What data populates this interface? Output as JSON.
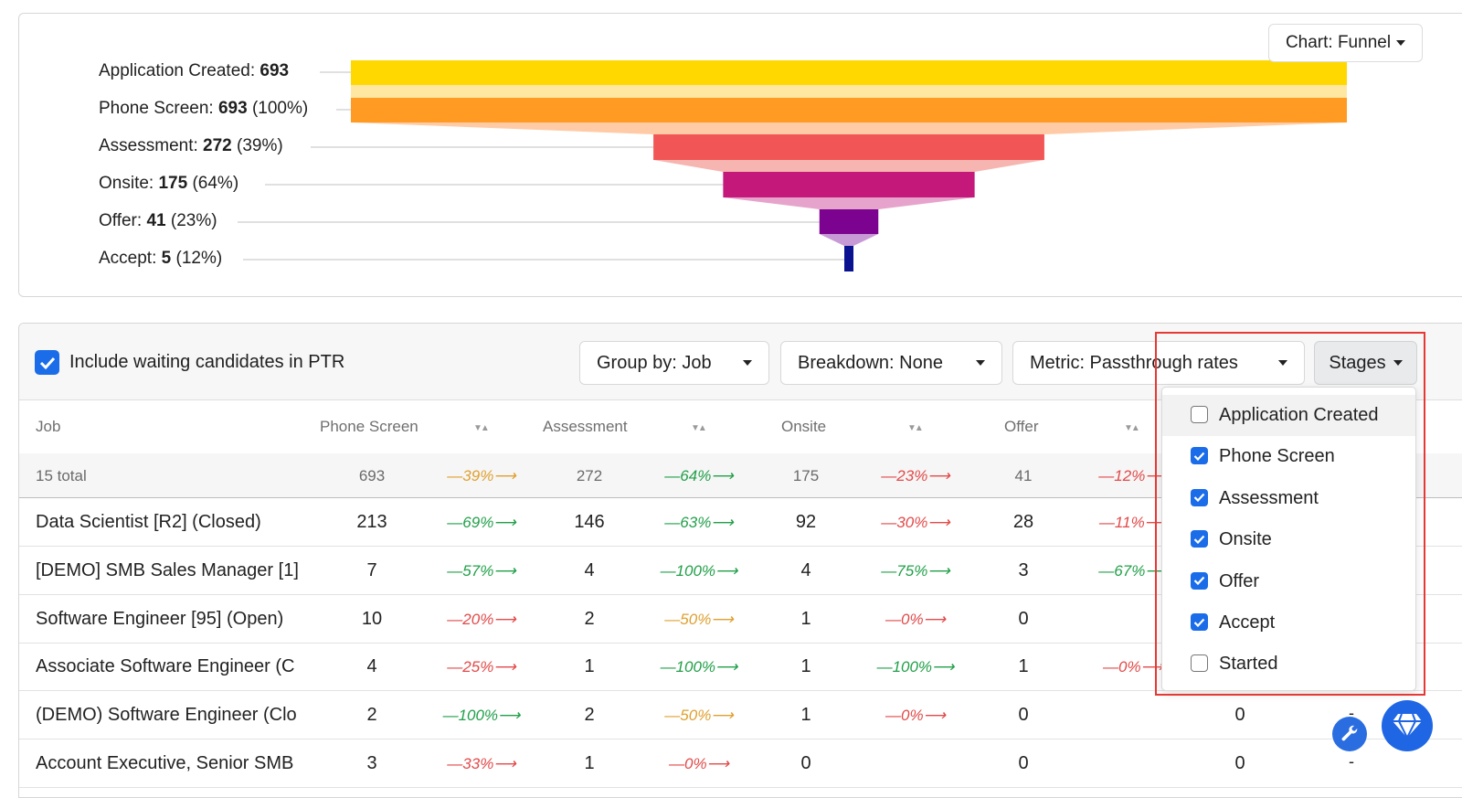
{
  "funnel": {
    "chart_button_label": "Chart: Funnel",
    "stages": [
      {
        "name": "Application Created:",
        "count": "693",
        "pct": "",
        "value": 693,
        "color": "#FFD800",
        "connector": "#FFE7A1"
      },
      {
        "name": "Phone Screen:",
        "count": "693",
        "pct": "(100%)",
        "value": 693,
        "color": "#FF9A22",
        "connector": "#FFCBA6"
      },
      {
        "name": "Assessment:",
        "count": "272",
        "pct": "(39%)",
        "value": 272,
        "color": "#F25555",
        "connector": "#F6B5B0"
      },
      {
        "name": "Onsite:",
        "count": "175",
        "pct": "(64%)",
        "value": 175,
        "color": "#C4197A",
        "connector": "#E6A3CB"
      },
      {
        "name": "Offer:",
        "count": "41",
        "pct": "(23%)",
        "value": 41,
        "color": "#7B038F",
        "connector": "#C79AD6"
      },
      {
        "name": "Accept:",
        "count": "5",
        "pct": "(12%)",
        "value": 5,
        "color": "#0A1290",
        "connector": ""
      }
    ]
  },
  "toolbar": {
    "include_label": "Include waiting candidates in PTR",
    "group_by": "Group by: Job",
    "breakdown": "Breakdown: None",
    "metric": "Metric: Passthrough rates",
    "stages": "Stages"
  },
  "table": {
    "headers": [
      "Job",
      "Phone Screen",
      "Assessment",
      "Onsite",
      "Offer"
    ],
    "total": {
      "label": "15 total",
      "values": [
        "693",
        "272",
        "175",
        "41"
      ],
      "rates": [
        {
          "text": "—39%⟶",
          "color": "#E0A030"
        },
        {
          "text": "—64%⟶",
          "color": "#22A04A"
        },
        {
          "text": "—23%⟶",
          "color": "#E24A4A"
        },
        {
          "text": "—12%⟶",
          "color": "#E24A4A"
        }
      ]
    },
    "rows": [
      {
        "job": "Data Scientist [R2] (Closed)",
        "values": [
          "213",
          "146",
          "92",
          "28",
          ""
        ],
        "rates": [
          {
            "text": "—69%⟶",
            "color": "#22A04A"
          },
          {
            "text": "—63%⟶",
            "color": "#22A04A"
          },
          {
            "text": "—30%⟶",
            "color": "#E24A4A"
          },
          {
            "text": "—11%⟶",
            "color": "#E24A4A"
          }
        ]
      },
      {
        "job": "[DEMO] SMB Sales Manager [1]",
        "values": [
          "7",
          "4",
          "4",
          "3",
          ""
        ],
        "rates": [
          {
            "text": "—57%⟶",
            "color": "#22A04A"
          },
          {
            "text": "—100%⟶",
            "color": "#22A04A"
          },
          {
            "text": "—75%⟶",
            "color": "#22A04A"
          },
          {
            "text": "—67%⟶",
            "color": "#22A04A"
          }
        ]
      },
      {
        "job": "Software Engineer [95] (Open)",
        "values": [
          "10",
          "2",
          "1",
          "0",
          ""
        ],
        "rates": [
          {
            "text": "—20%⟶",
            "color": "#E24A4A"
          },
          {
            "text": "—50%⟶",
            "color": "#E0A030"
          },
          {
            "text": "—0%⟶",
            "color": "#E24A4A"
          },
          {
            "text": "",
            "color": "#E24A4A"
          }
        ]
      },
      {
        "job": "Associate Software Engineer (C",
        "values": [
          "4",
          "1",
          "1",
          "1",
          ""
        ],
        "rates": [
          {
            "text": "—25%⟶",
            "color": "#E24A4A"
          },
          {
            "text": "—100%⟶",
            "color": "#22A04A"
          },
          {
            "text": "—100%⟶",
            "color": "#22A04A"
          },
          {
            "text": "—0%⟶",
            "color": "#E24A4A"
          }
        ]
      },
      {
        "job": "(DEMO) Software Engineer (Clo",
        "values": [
          "2",
          "2",
          "1",
          "0",
          "0"
        ],
        "rates": [
          {
            "text": "—100%⟶",
            "color": "#22A04A"
          },
          {
            "text": "—50%⟶",
            "color": "#E0A030"
          },
          {
            "text": "—0%⟶",
            "color": "#E24A4A"
          },
          {
            "text": "",
            "color": "#E24A4A"
          }
        ]
      },
      {
        "job": "Account Executive, Senior SMB",
        "values": [
          "3",
          "1",
          "0",
          "0",
          "0"
        ],
        "rates": [
          {
            "text": "—33%⟶",
            "color": "#E24A4A"
          },
          {
            "text": "—0%⟶",
            "color": "#E24A4A"
          },
          {
            "text": "",
            "color": "#E24A4A"
          },
          {
            "text": "",
            "color": "#E24A4A"
          }
        ]
      }
    ]
  },
  "stages_menu": {
    "items": [
      {
        "label": "Application Created",
        "checked": false
      },
      {
        "label": "Phone Screen",
        "checked": true
      },
      {
        "label": "Assessment",
        "checked": true
      },
      {
        "label": "Onsite",
        "checked": true
      },
      {
        "label": "Offer",
        "checked": true
      },
      {
        "label": "Accept",
        "checked": true
      },
      {
        "label": "Started",
        "checked": false
      }
    ]
  },
  "trailing_dashes": [
    "-",
    "-"
  ],
  "colors": {
    "accent": "#1a6ce8",
    "highlight": "#e53935"
  }
}
